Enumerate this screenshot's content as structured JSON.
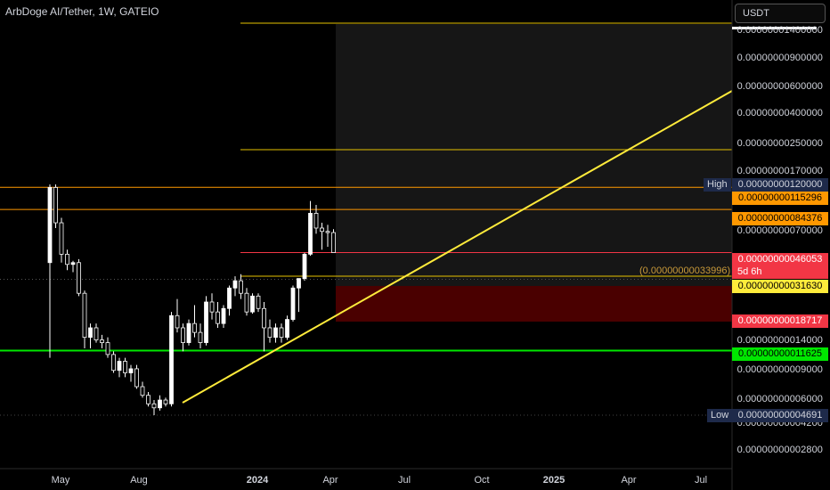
{
  "header": {
    "symbol_title": "ArbDoge AI/Tether, 1W, GATEIO"
  },
  "currency_button": {
    "label": "USDT"
  },
  "price_axis": {
    "top_label_partial": "0.00000001400000",
    "tick_labels": [
      "0.00000000900000",
      "0.00000000600000",
      "0.00000000400000",
      "0.00000000250000",
      "0.00000000170000",
      "0.00000000070000",
      "0.00000000014000",
      "0.00000000009000",
      "0.00000000006000",
      "0.00000000004200",
      "0.00000000002800"
    ]
  },
  "badges": {
    "high_tag": "High",
    "high_value": "0.00000000120000",
    "orange_upper": "0.00000000115296",
    "orange_lower": "0.00000000084376",
    "current_price": "0.00000000046053",
    "countdown": "5d 6h",
    "yellow_price": "0.00000000031630",
    "red_lower": "0.00000000018717",
    "green_price": "0.00000000011625",
    "low_tag": "Low",
    "low_value": "0.00000000004691"
  },
  "ghost_price": "(0.00000000033996)",
  "time_axis": {
    "labels": [
      "May",
      "Aug",
      "2024",
      "Apr",
      "Jul",
      "Oct",
      "2025",
      "Apr",
      "Jul"
    ],
    "bold_labels": [
      "2024",
      "2025"
    ]
  },
  "colors": {
    "background": "#000000",
    "bull_candle": "#ffffff",
    "bear_candle": "#000000",
    "orange_line": "#ff9800",
    "yellow_level": "#e6c200",
    "trend_line": "#ffeb3b",
    "green_line": "#00e600",
    "red_zone": "#4a0000",
    "grey_zone": "#161616",
    "current_price": "#f23645",
    "high_low_tag": "#1e2a4a"
  },
  "chart_data": {
    "type": "candlestick",
    "symbol": "ArbDoge AI/Tether",
    "interval": "1W",
    "exchange": "GATEIO",
    "scale": "log",
    "high": 1.2e-09,
    "low": 4.691e-11,
    "current": 4.6053e-10,
    "horizontal_levels": [
      1.15296e-09,
      8.4376e-10,
      3.163e-10,
      1.1625e-10
    ],
    "candles": [
      {
        "o": 4e-10,
        "h": 1.2e-09,
        "l": 1.05e-10,
        "c": 1.15e-09
      },
      {
        "o": 1.15e-09,
        "h": 1.2e-09,
        "l": 6.5e-10,
        "c": 7e-10
      },
      {
        "o": 7e-10,
        "h": 7.5e-10,
        "l": 4e-10,
        "c": 4.5e-10
      },
      {
        "o": 4.5e-10,
        "h": 4.8e-10,
        "l": 3.6e-10,
        "c": 3.9e-10
      },
      {
        "o": 3.9e-10,
        "h": 4.1e-10,
        "l": 3.5e-10,
        "c": 4e-10
      },
      {
        "o": 4e-10,
        "h": 4.2e-10,
        "l": 2.5e-10,
        "c": 2.6e-10
      },
      {
        "o": 2.6e-10,
        "h": 2.7e-10,
        "l": 1.2e-10,
        "c": 1.4e-10
      },
      {
        "o": 1.4e-10,
        "h": 1.7e-10,
        "l": 1.2e-10,
        "c": 1.6e-10
      },
      {
        "o": 1.6e-10,
        "h": 1.7e-10,
        "l": 1.3e-10,
        "c": 1.35e-10
      },
      {
        "o": 1.35e-10,
        "h": 1.45e-10,
        "l": 1.2e-10,
        "c": 1.3e-10
      },
      {
        "o": 1.3e-10,
        "h": 1.4e-10,
        "l": 1.05e-10,
        "c": 1.1e-10
      },
      {
        "o": 1.1e-10,
        "h": 1.15e-10,
        "l": 8.5e-11,
        "c": 8.8e-11
      },
      {
        "o": 8.8e-11,
        "h": 1.05e-10,
        "l": 8e-11,
        "c": 1e-10
      },
      {
        "o": 1e-10,
        "h": 1.05e-10,
        "l": 8e-11,
        "c": 8.5e-11
      },
      {
        "o": 8.5e-11,
        "h": 9.5e-11,
        "l": 7.5e-11,
        "c": 9e-11
      },
      {
        "o": 9e-11,
        "h": 9.5e-11,
        "l": 6.8e-11,
        "c": 7e-11
      },
      {
        "o": 7e-11,
        "h": 7.5e-11,
        "l": 6e-11,
        "c": 6.2e-11
      },
      {
        "o": 6.2e-11,
        "h": 6.5e-11,
        "l": 5.3e-11,
        "c": 5.5e-11
      },
      {
        "o": 5.5e-11,
        "h": 5.8e-11,
        "l": 4.691e-11,
        "c": 5.2e-11
      },
      {
        "o": 5.2e-11,
        "h": 6.2e-11,
        "l": 5e-11,
        "c": 5.8e-11
      },
      {
        "o": 5.8e-11,
        "h": 6e-11,
        "l": 5.3e-11,
        "c": 5.5e-11
      },
      {
        "o": 5.5e-11,
        "h": 2e-10,
        "l": 5.3e-11,
        "c": 1.9e-10
      },
      {
        "o": 1.9e-10,
        "h": 2.4e-10,
        "l": 1.5e-10,
        "c": 1.6e-10
      },
      {
        "o": 1.6e-10,
        "h": 1.7e-10,
        "l": 1.15e-10,
        "c": 1.3e-10
      },
      {
        "o": 1.3e-10,
        "h": 1.8e-10,
        "l": 1.25e-10,
        "c": 1.7e-10
      },
      {
        "o": 1.7e-10,
        "h": 2.2e-10,
        "l": 1.4e-10,
        "c": 1.5e-10
      },
      {
        "o": 1.5e-10,
        "h": 1.7e-10,
        "l": 1.2e-10,
        "c": 1.3e-10
      },
      {
        "o": 1.3e-10,
        "h": 2.5e-10,
        "l": 1.25e-10,
        "c": 2.3e-10
      },
      {
        "o": 2.3e-10,
        "h": 2.6e-10,
        "l": 1.8e-10,
        "c": 2e-10
      },
      {
        "o": 2e-10,
        "h": 2.3e-10,
        "l": 1.6e-10,
        "c": 1.7e-10
      },
      {
        "o": 1.7e-10,
        "h": 2.2e-10,
        "l": 1.6e-10,
        "c": 2.1e-10
      },
      {
        "o": 2.1e-10,
        "h": 2.9e-10,
        "l": 1.9e-10,
        "c": 2.8e-10
      },
      {
        "o": 2.8e-10,
        "h": 3.3e-10,
        "l": 2.5e-10,
        "c": 3.1e-10
      },
      {
        "o": 3.1e-10,
        "h": 3.4e-10,
        "l": 2.4e-10,
        "c": 2.6e-10
      },
      {
        "o": 2.6e-10,
        "h": 2.8e-10,
        "l": 1.9e-10,
        "c": 2e-10
      },
      {
        "o": 2e-10,
        "h": 2.6e-10,
        "l": 1.95e-10,
        "c": 2.5e-10
      },
      {
        "o": 2.5e-10,
        "h": 2.6e-10,
        "l": 2e-10,
        "c": 2.1e-10
      },
      {
        "o": 2.1e-10,
        "h": 2.3e-10,
        "l": 1.15e-10,
        "c": 1.6e-10
      },
      {
        "o": 1.6e-10,
        "h": 1.8e-10,
        "l": 1.3e-10,
        "c": 1.4e-10
      },
      {
        "o": 1.4e-10,
        "h": 1.7e-10,
        "l": 1.3e-10,
        "c": 1.6e-10
      },
      {
        "o": 1.6e-10,
        "h": 1.7e-10,
        "l": 1.3e-10,
        "c": 1.4e-10
      },
      {
        "o": 1.4e-10,
        "h": 1.9e-10,
        "l": 1.35e-10,
        "c": 1.8e-10
      },
      {
        "o": 1.8e-10,
        "h": 2.9e-10,
        "l": 1.75e-10,
        "c": 2.8e-10
      },
      {
        "o": 2.8e-10,
        "h": 3.2e-10,
        "l": 2e-10,
        "c": 3.2e-10
      },
      {
        "o": 3.2e-10,
        "h": 4.6e-10,
        "l": 3.1e-10,
        "c": 4.5e-10
      },
      {
        "o": 4.5e-10,
        "h": 9.5e-10,
        "l": 4.4e-10,
        "c": 8e-10
      },
      {
        "o": 8e-10,
        "h": 9e-10,
        "l": 6e-10,
        "c": 6.5e-10
      },
      {
        "o": 6.5e-10,
        "h": 7e-10,
        "l": 4.8e-10,
        "c": 6.2e-10
      },
      {
        "o": 6.2e-10,
        "h": 6.8e-10,
        "l": 5e-10,
        "c": 6.1e-10
      },
      {
        "o": 6.1e-10,
        "h": 6.4e-10,
        "l": 4.6e-10,
        "c": 4.6053e-10
      }
    ]
  }
}
